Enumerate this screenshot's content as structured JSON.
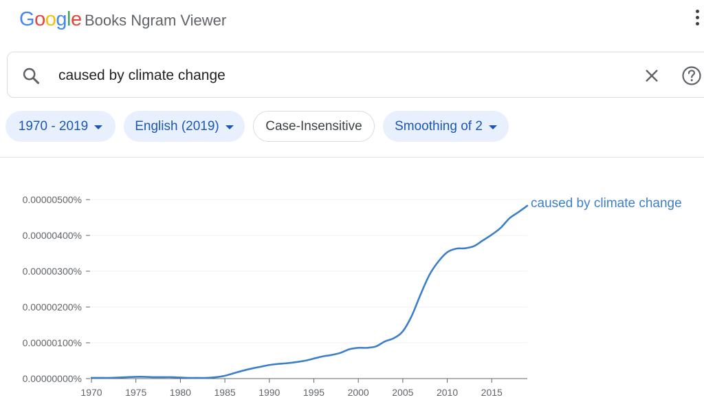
{
  "header": {
    "logo_letters": [
      {
        "char": "G",
        "color": "#4285f4"
      },
      {
        "char": "o",
        "color": "#ea4335"
      },
      {
        "char": "o",
        "color": "#fbbc05"
      },
      {
        "char": "g",
        "color": "#4285f4"
      },
      {
        "char": "l",
        "color": "#34a853"
      },
      {
        "char": "e",
        "color": "#ea4335"
      }
    ],
    "title": "Books Ngram Viewer",
    "menu_icon": "more-vert-icon"
  },
  "search": {
    "value": "caused by climate change",
    "search_icon": "search-icon",
    "clear_icon": "close-icon",
    "help_icon": "help-icon"
  },
  "filters": [
    {
      "label": "1970 - 2019",
      "style": "filled",
      "dropdown": true
    },
    {
      "label": "English (2019)",
      "style": "filled",
      "dropdown": true
    },
    {
      "label": "Case-Insensitive",
      "style": "outline",
      "dropdown": false
    },
    {
      "label": "Smoothing of 2",
      "style": "filled",
      "dropdown": true
    }
  ],
  "colors": {
    "accent": "#1a56b5",
    "chip_bg": "#e8f0fe",
    "series": "#3d7fc6"
  },
  "chart_data": {
    "type": "line",
    "x": [
      1970,
      1971,
      1972,
      1973,
      1974,
      1975,
      1976,
      1977,
      1978,
      1979,
      1980,
      1981,
      1982,
      1983,
      1984,
      1985,
      1986,
      1987,
      1988,
      1989,
      1990,
      1991,
      1992,
      1993,
      1994,
      1995,
      1996,
      1997,
      1998,
      1999,
      2000,
      2001,
      2002,
      2003,
      2004,
      2005,
      2006,
      2007,
      2008,
      2009,
      2010,
      2011,
      2012,
      2013,
      2014,
      2015,
      2016,
      2017,
      2018,
      2019
    ],
    "series": [
      {
        "name": "caused by climate change",
        "values": [
          2e-08,
          2e-08,
          2e-08,
          3e-08,
          4e-08,
          5e-08,
          5e-08,
          4e-08,
          4e-08,
          4e-08,
          3e-08,
          2e-08,
          2e-08,
          2e-08,
          4e-08,
          8e-08,
          1.5e-07,
          2.2e-07,
          2.8e-07,
          3.3e-07,
          3.8e-07,
          4.1e-07,
          4.3e-07,
          4.6e-07,
          5e-07,
          5.6e-07,
          6.2e-07,
          6.6e-07,
          7.2e-07,
          8.2e-07,
          8.6e-07,
          8.6e-07,
          9e-07,
          1.04e-06,
          1.13e-06,
          1.32e-06,
          1.75e-06,
          2.35e-06,
          2.9e-06,
          3.27e-06,
          3.53e-06,
          3.63e-06,
          3.64e-06,
          3.7e-06,
          3.86e-06,
          4.02e-06,
          4.21e-06,
          4.48e-06,
          4.65e-06,
          4.83e-06
        ]
      }
    ],
    "y_ticks": [
      0,
      1e-06,
      2e-06,
      3e-06,
      4e-06,
      5e-06
    ],
    "y_tick_labels": [
      "0.00000000%",
      "0.00000100%",
      "0.00000200%",
      "0.00000300%",
      "0.00000400%",
      "0.00000500%"
    ],
    "x_ticks": [
      1970,
      1975,
      1980,
      1985,
      1990,
      1995,
      2000,
      2005,
      2010,
      2015
    ],
    "x_tick_labels": [
      "1970",
      "1975",
      "1980",
      "1985",
      "1990",
      "1995",
      "2000",
      "2005",
      "2010",
      "2015"
    ],
    "xlim": [
      1970,
      2019
    ],
    "ylim": [
      0,
      5e-06
    ],
    "grid": true,
    "legend": "end-of-line label"
  }
}
